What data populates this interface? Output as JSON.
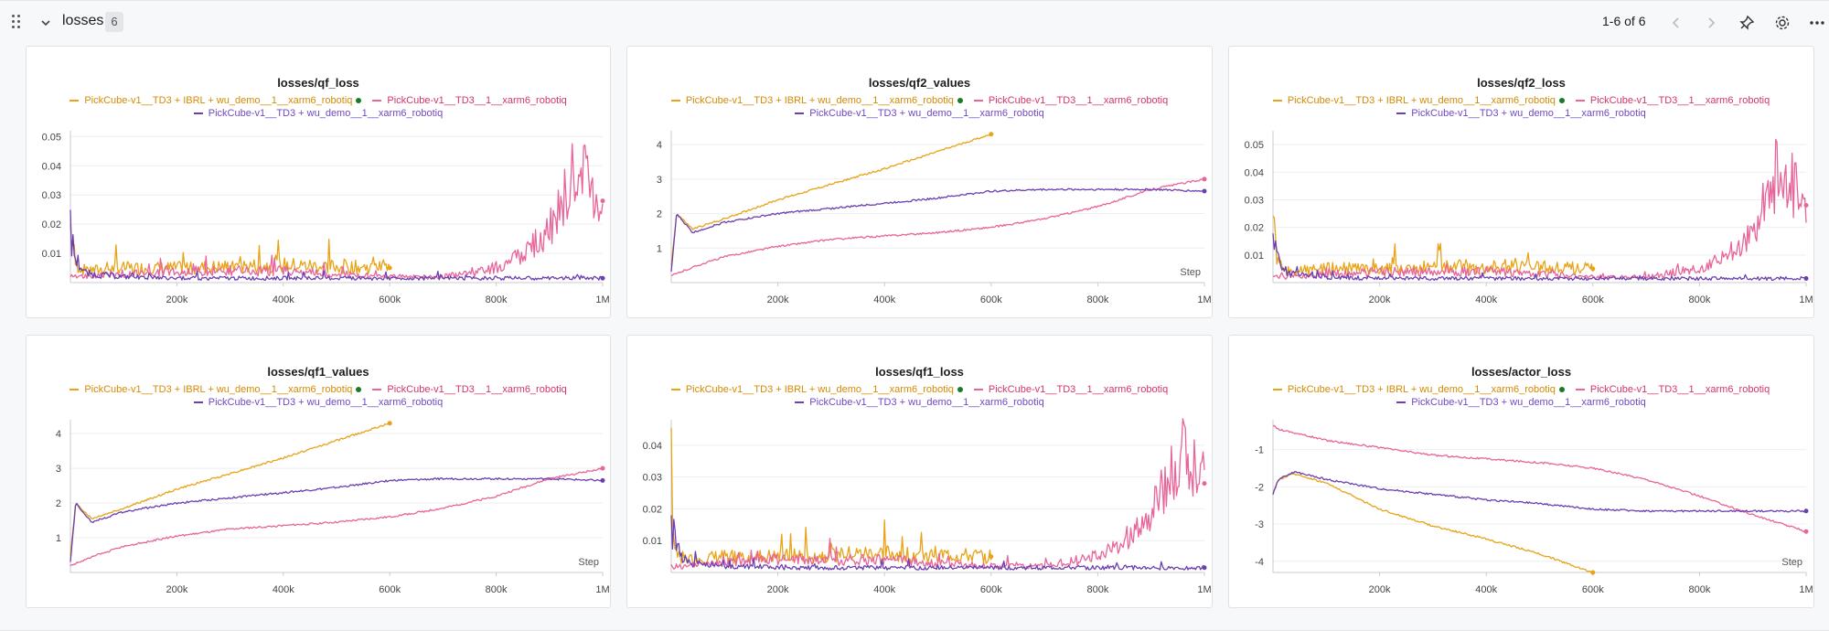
{
  "section": {
    "title": "losses",
    "count": "6",
    "pager": "1-6 of 6"
  },
  "icons": [
    "drag-handle-icon",
    "chevron-down-icon",
    "chevron-left-icon",
    "chevron-right-icon",
    "pin-icon",
    "gear-icon",
    "more-icon"
  ],
  "colors": {
    "series_orange": "#e8a317",
    "series_pink": "#e8649a",
    "series_purple": "#6b3fb0",
    "legend_orange_text": "#d68a00",
    "legend_pink_text": "#d6336c",
    "legend_purple_text": "#7048c6"
  },
  "legend": [
    {
      "name": "PickCube-v1__TD3 + IBRL + wu_demo__1__xarm6_robotiq",
      "color": "#e8a317"
    },
    {
      "name": "PickCube-v1__TD3__1__xarm6_robotiq",
      "color": "#e8649a"
    },
    {
      "name": "PickCube-v1__TD3 + wu_demo__1__xarm6_robotiq",
      "color": "#6b3fb0"
    }
  ],
  "chart_data": [
    {
      "type": "line",
      "title": "losses/qf_loss",
      "xlabel": "",
      "xlim": [
        0,
        1000000
      ],
      "ylim": [
        0,
        0.052
      ],
      "xticks": [
        "200k",
        "400k",
        "600k",
        "800k",
        "1M"
      ],
      "yticks": [
        "0.01",
        "0.02",
        "0.03",
        "0.04",
        "0.05"
      ],
      "series": [
        {
          "name": "PickCube-v1__TD3 + IBRL + wu_demo__1__xarm6_robotiq",
          "x": [
            0,
            10000,
            30000,
            60000,
            100000,
            200000,
            300000,
            400000,
            500000,
            600000
          ],
          "y": [
            0.019,
            0.006,
            0.004,
            0.0045,
            0.005,
            0.005,
            0.0055,
            0.006,
            0.0055,
            0.005
          ]
        },
        {
          "name": "PickCube-v1__TD3__1__xarm6_robotiq",
          "x": [
            0,
            20000,
            100000,
            200000,
            300000,
            400000,
            500000,
            600000,
            700000,
            800000,
            850000,
            900000,
            950000,
            1000000
          ],
          "y": [
            0.002,
            0.002,
            0.003,
            0.004,
            0.004,
            0.004,
            0.003,
            0.002,
            0.002,
            0.005,
            0.01,
            0.018,
            0.04,
            0.028
          ]
        },
        {
          "name": "PickCube-v1__TD3 + wu_demo__1__xarm6_robotiq",
          "x": [
            0,
            10000,
            30000,
            100000,
            200000,
            400000,
            600000,
            800000,
            1000000
          ],
          "y": [
            0.016,
            0.008,
            0.003,
            0.002,
            0.0015,
            0.0015,
            0.0015,
            0.0015,
            0.0015
          ]
        }
      ]
    },
    {
      "type": "line",
      "title": "losses/qf2_values",
      "xlabel": "Step",
      "xlim": [
        0,
        1000000
      ],
      "ylim": [
        0,
        4.4
      ],
      "xticks": [
        "200k",
        "400k",
        "600k",
        "800k",
        "1M"
      ],
      "yticks": [
        "1",
        "2",
        "3",
        "4"
      ],
      "series": [
        {
          "name": "PickCube-v1__TD3 + IBRL + wu_demo__1__xarm6_robotiq",
          "x": [
            0,
            10000,
            40000,
            100000,
            200000,
            300000,
            400000,
            500000,
            600000
          ],
          "y": [
            0.5,
            2.0,
            1.55,
            1.85,
            2.4,
            2.85,
            3.3,
            3.8,
            4.3
          ]
        },
        {
          "name": "PickCube-v1__TD3__1__xarm6_robotiq",
          "x": [
            0,
            50000,
            100000,
            200000,
            300000,
            400000,
            500000,
            600000,
            700000,
            800000,
            900000,
            1000000
          ],
          "y": [
            0.2,
            0.5,
            0.75,
            1.05,
            1.25,
            1.35,
            1.45,
            1.6,
            1.85,
            2.2,
            2.7,
            3.0
          ]
        },
        {
          "name": "PickCube-v1__TD3 + wu_demo__1__xarm6_robotiq",
          "x": [
            0,
            10000,
            40000,
            100000,
            200000,
            300000,
            400000,
            500000,
            600000,
            700000,
            800000,
            900000,
            1000000
          ],
          "y": [
            0.3,
            2.0,
            1.45,
            1.75,
            2.0,
            2.15,
            2.3,
            2.45,
            2.65,
            2.7,
            2.7,
            2.7,
            2.65
          ]
        }
      ]
    },
    {
      "type": "line",
      "title": "losses/qf2_loss",
      "xlabel": "",
      "xlim": [
        0,
        1000000
      ],
      "ylim": [
        0,
        0.055
      ],
      "xticks": [
        "200k",
        "400k",
        "600k",
        "800k",
        "1M"
      ],
      "yticks": [
        "0.01",
        "0.02",
        "0.03",
        "0.04",
        "0.05"
      ],
      "series": [
        {
          "name": "PickCube-v1__TD3 + IBRL + wu_demo__1__xarm6_robotiq",
          "x": [
            0,
            10000,
            30000,
            100000,
            200000,
            300000,
            400000,
            500000,
            600000
          ],
          "y": [
            0.02,
            0.006,
            0.004,
            0.005,
            0.005,
            0.0055,
            0.006,
            0.0055,
            0.005
          ]
        },
        {
          "name": "PickCube-v1__TD3__1__xarm6_robotiq",
          "x": [
            0,
            20000,
            100000,
            200000,
            300000,
            400000,
            500000,
            600000,
            700000,
            800000,
            850000,
            900000,
            950000,
            1000000
          ],
          "y": [
            0.002,
            0.002,
            0.003,
            0.004,
            0.004,
            0.004,
            0.003,
            0.002,
            0.002,
            0.005,
            0.01,
            0.018,
            0.042,
            0.028
          ]
        },
        {
          "name": "PickCube-v1__TD3 + wu_demo__1__xarm6_robotiq",
          "x": [
            0,
            10000,
            30000,
            100000,
            200000,
            400000,
            600000,
            800000,
            1000000
          ],
          "y": [
            0.017,
            0.008,
            0.003,
            0.002,
            0.0015,
            0.0015,
            0.0015,
            0.0015,
            0.0015
          ]
        }
      ]
    },
    {
      "type": "line",
      "title": "losses/qf1_values",
      "xlabel": "Step",
      "xlim": [
        0,
        1000000
      ],
      "ylim": [
        0,
        4.4
      ],
      "xticks": [
        "200k",
        "400k",
        "600k",
        "800k",
        "1M"
      ],
      "yticks": [
        "1",
        "2",
        "3",
        "4"
      ],
      "series": [
        {
          "name": "PickCube-v1__TD3 + IBRL + wu_demo__1__xarm6_robotiq",
          "x": [
            0,
            10000,
            40000,
            100000,
            200000,
            300000,
            400000,
            500000,
            600000
          ],
          "y": [
            0.5,
            2.0,
            1.55,
            1.85,
            2.4,
            2.85,
            3.3,
            3.8,
            4.3
          ]
        },
        {
          "name": "PickCube-v1__TD3__1__xarm6_robotiq",
          "x": [
            0,
            50000,
            100000,
            200000,
            300000,
            400000,
            500000,
            600000,
            700000,
            800000,
            900000,
            1000000
          ],
          "y": [
            0.2,
            0.5,
            0.75,
            1.05,
            1.25,
            1.35,
            1.45,
            1.6,
            1.85,
            2.2,
            2.7,
            3.0
          ]
        },
        {
          "name": "PickCube-v1__TD3 + wu_demo__1__xarm6_robotiq",
          "x": [
            0,
            10000,
            40000,
            100000,
            200000,
            300000,
            400000,
            500000,
            600000,
            700000,
            800000,
            900000,
            1000000
          ],
          "y": [
            0.3,
            2.0,
            1.45,
            1.75,
            2.0,
            2.15,
            2.3,
            2.45,
            2.65,
            2.7,
            2.7,
            2.7,
            2.65
          ]
        }
      ]
    },
    {
      "type": "line",
      "title": "losses/qf1_loss",
      "xlabel": "",
      "xlim": [
        0,
        1000000
      ],
      "ylim": [
        0,
        0.048
      ],
      "xticks": [
        "200k",
        "400k",
        "600k",
        "800k",
        "1M"
      ],
      "yticks": [
        "0.01",
        "0.02",
        "0.03",
        "0.04"
      ],
      "series": [
        {
          "name": "PickCube-v1__TD3 + IBRL + wu_demo__1__xarm6_robotiq",
          "x": [
            0,
            10000,
            30000,
            100000,
            200000,
            300000,
            400000,
            500000,
            600000
          ],
          "y": [
            0.018,
            0.006,
            0.004,
            0.005,
            0.005,
            0.0055,
            0.006,
            0.0055,
            0.005
          ]
        },
        {
          "name": "PickCube-v1__TD3__1__xarm6_robotiq",
          "x": [
            0,
            20000,
            100000,
            200000,
            300000,
            400000,
            500000,
            600000,
            700000,
            800000,
            850000,
            900000,
            950000,
            1000000
          ],
          "y": [
            0.002,
            0.002,
            0.003,
            0.004,
            0.004,
            0.004,
            0.003,
            0.002,
            0.002,
            0.005,
            0.01,
            0.018,
            0.038,
            0.028
          ]
        },
        {
          "name": "PickCube-v1__TD3 + wu_demo__1__xarm6_robotiq",
          "x": [
            0,
            10000,
            30000,
            100000,
            200000,
            400000,
            600000,
            800000,
            1000000
          ],
          "y": [
            0.015,
            0.008,
            0.003,
            0.002,
            0.0015,
            0.0015,
            0.0015,
            0.0015,
            0.0015
          ]
        }
      ]
    },
    {
      "type": "line",
      "title": "losses/actor_loss",
      "xlabel": "Step",
      "xlim": [
        0,
        1000000
      ],
      "ylim": [
        -4.3,
        -0.2
      ],
      "xticks": [
        "200k",
        "400k",
        "600k",
        "800k",
        "1M"
      ],
      "yticks": [
        "-1",
        "-2",
        "-3",
        "-4"
      ],
      "series": [
        {
          "name": "PickCube-v1__TD3 + IBRL + wu_demo__1__xarm6_robotiq",
          "x": [
            0,
            10000,
            40000,
            100000,
            200000,
            300000,
            400000,
            500000,
            600000
          ],
          "y": [
            -2.2,
            -1.8,
            -1.65,
            -1.9,
            -2.6,
            -3.05,
            -3.4,
            -3.8,
            -4.3
          ]
        },
        {
          "name": "PickCube-v1__TD3__1__xarm6_robotiq",
          "x": [
            0,
            10000,
            100000,
            200000,
            300000,
            400000,
            500000,
            600000,
            700000,
            800000,
            900000,
            1000000
          ],
          "y": [
            -0.35,
            -0.45,
            -0.75,
            -0.95,
            -1.15,
            -1.25,
            -1.35,
            -1.5,
            -1.8,
            -2.25,
            -2.75,
            -3.2
          ]
        },
        {
          "name": "PickCube-v1__TD3 + wu_demo__1__xarm6_robotiq",
          "x": [
            0,
            10000,
            40000,
            100000,
            200000,
            300000,
            400000,
            500000,
            600000,
            700000,
            800000,
            900000,
            1000000
          ],
          "y": [
            -2.2,
            -1.8,
            -1.6,
            -1.8,
            -2.05,
            -2.2,
            -2.35,
            -2.45,
            -2.6,
            -2.65,
            -2.65,
            -2.65,
            -2.65
          ]
        }
      ]
    }
  ]
}
